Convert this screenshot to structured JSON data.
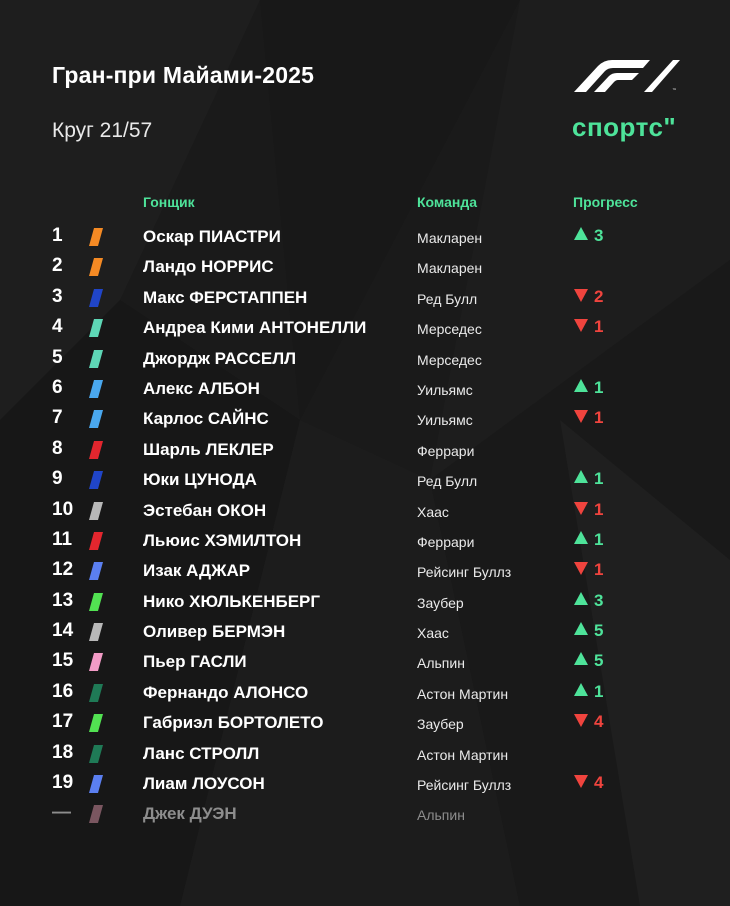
{
  "title": "Гран-при Майами-2025",
  "lap": "Круг 21/57",
  "brand": "спортс\"",
  "logo_icon": "f1-logo",
  "headers": {
    "driver": "Гонщик",
    "team": "Команда",
    "progress": "Прогресс"
  },
  "colors": {
    "accent": "#4ee39a",
    "down": "#f0443e",
    "background": "#1a1a1a"
  },
  "drivers": [
    {
      "pos": "1",
      "name": "Оскар ПИАСТРИ",
      "team": "Макларен",
      "color": "#f58a24",
      "change": "3",
      "dir": "up"
    },
    {
      "pos": "2",
      "name": "Ландо НОРРИС",
      "team": "Макларен",
      "color": "#f58a24",
      "change": "",
      "dir": ""
    },
    {
      "pos": "3",
      "name": "Макс ФЕРСТАППЕН",
      "team": "Ред Булл",
      "color": "#2045c8",
      "change": "2",
      "dir": "down"
    },
    {
      "pos": "4",
      "name": "Андреа Кими АНТОНЕЛЛИ",
      "team": "Мерседес",
      "color": "#5ed7b6",
      "change": "1",
      "dir": "down"
    },
    {
      "pos": "5",
      "name": "Джордж РАССЕЛЛ",
      "team": "Мерседес",
      "color": "#5ed7b6",
      "change": "",
      "dir": ""
    },
    {
      "pos": "6",
      "name": "Алекс АЛБОН",
      "team": "Уильямс",
      "color": "#4aa8ef",
      "change": "1",
      "dir": "up"
    },
    {
      "pos": "7",
      "name": "Карлос САЙНС",
      "team": "Уильямс",
      "color": "#4aa8ef",
      "change": "1",
      "dir": "down"
    },
    {
      "pos": "8",
      "name": "Шарль ЛЕКЛЕР",
      "team": "Феррари",
      "color": "#e3262e",
      "change": "",
      "dir": ""
    },
    {
      "pos": "9",
      "name": "Юки ЦУНОДА",
      "team": "Ред Булл",
      "color": "#2045c8",
      "change": "1",
      "dir": "up"
    },
    {
      "pos": "10",
      "name": "Эстебан ОКОН",
      "team": "Хаас",
      "color": "#b8b8b8",
      "change": "1",
      "dir": "down"
    },
    {
      "pos": "11",
      "name": "Льюис ХЭМИЛТОН",
      "team": "Феррари",
      "color": "#e3262e",
      "change": "1",
      "dir": "up"
    },
    {
      "pos": "12",
      "name": "Изак АДЖАР",
      "team": "Рейсинг Буллз",
      "color": "#5b7ff0",
      "change": "1",
      "dir": "down"
    },
    {
      "pos": "13",
      "name": "Нико ХЮЛЬКЕНБЕРГ",
      "team": "Заубер",
      "color": "#52e252",
      "change": "3",
      "dir": "up"
    },
    {
      "pos": "14",
      "name": "Оливер БЕРМЭН",
      "team": "Хаас",
      "color": "#b8b8b8",
      "change": "5",
      "dir": "up"
    },
    {
      "pos": "15",
      "name": "Пьер ГАСЛИ",
      "team": "Альпин",
      "color": "#f39bc6",
      "change": "5",
      "dir": "up"
    },
    {
      "pos": "16",
      "name": "Фернандо АЛОНСО",
      "team": "Астон Мартин",
      "color": "#1f7a56",
      "change": "1",
      "dir": "up"
    },
    {
      "pos": "17",
      "name": "Габриэл БОРТОЛЕТО",
      "team": "Заубер",
      "color": "#52e252",
      "change": "4",
      "dir": "down"
    },
    {
      "pos": "18",
      "name": "Ланс СТРОЛЛ",
      "team": "Астон Мартин",
      "color": "#1f7a56",
      "change": "",
      "dir": ""
    },
    {
      "pos": "19",
      "name": "Лиам ЛОУСОН",
      "team": "Рейсинг Буллз",
      "color": "#5b7ff0",
      "change": "4",
      "dir": "down"
    },
    {
      "pos": "—",
      "name": "Джек ДУЭН",
      "team": "Альпин",
      "color": "#7a5660",
      "change": "",
      "dir": "",
      "muted": true
    }
  ]
}
